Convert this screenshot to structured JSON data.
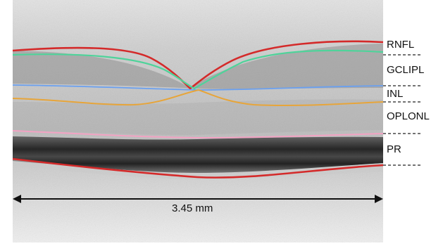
{
  "image": {
    "labels": {
      "rnfl": "RNFL",
      "gclipl": "GCLIPL",
      "inl": "INL",
      "oplonl": "OPLONL",
      "pr": "PR"
    },
    "scale_bar": "3.45 mm",
    "colors": {
      "rnfl_top": "#d42a2a",
      "rnfl_bottom": "#4fd39a",
      "gclipl_bottom": "#6aa0f0",
      "inl_bottom": "#e7a53a",
      "oplonl_bottom": "#f2a3c3",
      "pr_bottom": "#d42a2a"
    }
  }
}
